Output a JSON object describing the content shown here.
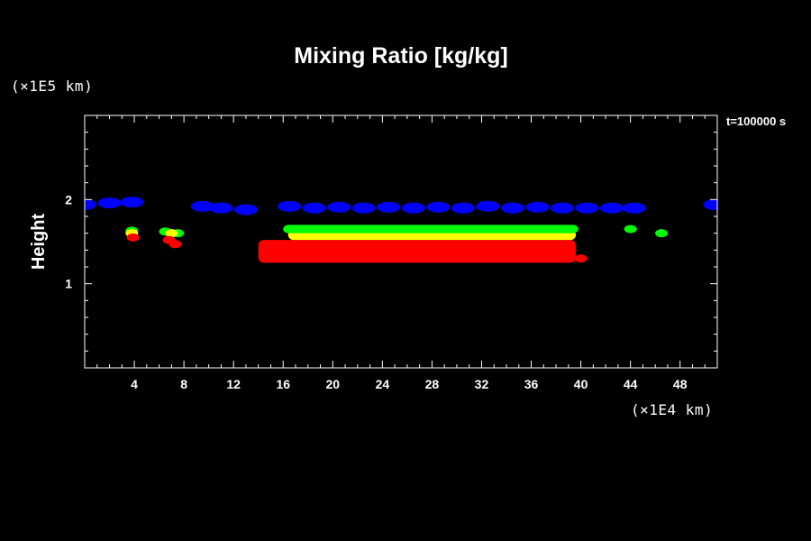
{
  "chart_data": {
    "type": "heatmap",
    "title": "Mixing Ratio [kg/kg]",
    "ylabel": "Height",
    "xlabel": "",
    "x_unit": "(×1E4 km)",
    "y_unit": "(×1E5 km)",
    "time_label": "t=100000 s",
    "xlim": [
      0,
      51
    ],
    "ylim": [
      0,
      3
    ],
    "x_ticks": [
      "4",
      "8",
      "12",
      "16",
      "20",
      "24",
      "28",
      "32",
      "36",
      "40",
      "44",
      "48"
    ],
    "y_ticks": [
      "1",
      "2"
    ],
    "grid": false,
    "colors": {
      "background": "#000000",
      "blue": "#0000ff",
      "green": "#00ff00",
      "yellow": "#ffff00",
      "red": "#ff0000"
    },
    "regions": [
      {
        "color": "blue",
        "shape": "blobs",
        "x": [
          0.0,
          2.0,
          3.8,
          9.5,
          11.0,
          13.0,
          16.5,
          18.5,
          20.5,
          22.5,
          24.5,
          26.5,
          28.5,
          30.5,
          32.5,
          34.5,
          36.5,
          38.5,
          40.5,
          42.5,
          44.3,
          50.8
        ],
        "y": [
          1.94,
          1.96,
          1.97,
          1.92,
          1.9,
          1.88,
          1.92,
          1.9,
          1.91,
          1.9,
          1.91,
          1.9,
          1.91,
          1.9,
          1.92,
          1.9,
          1.91,
          1.9,
          1.9,
          1.9,
          1.9,
          1.94
        ]
      },
      {
        "color": "red",
        "shape": "band",
        "x0": 14.0,
        "x1": 39.6,
        "y0": 1.25,
        "y1": 1.52
      },
      {
        "color": "yellow",
        "shape": "band",
        "x0": 16.4,
        "x1": 39.6,
        "y0": 1.52,
        "y1": 1.64
      },
      {
        "color": "green",
        "shape": "band",
        "x0": 16.0,
        "x1": 39.8,
        "y0": 1.6,
        "y1": 1.7
      },
      {
        "color": "green",
        "shape": "blobs",
        "x": [
          3.8,
          6.5,
          7.5,
          44.0,
          46.5
        ],
        "y": [
          1.63,
          1.62,
          1.6,
          1.65,
          1.6
        ]
      },
      {
        "color": "yellow",
        "shape": "blobs",
        "x": [
          3.8,
          7.0
        ],
        "y": [
          1.6,
          1.6
        ]
      },
      {
        "color": "red",
        "shape": "blobs",
        "x": [
          3.9,
          6.8,
          7.3,
          40.0
        ],
        "y": [
          1.55,
          1.52,
          1.47,
          1.3
        ]
      }
    ]
  }
}
